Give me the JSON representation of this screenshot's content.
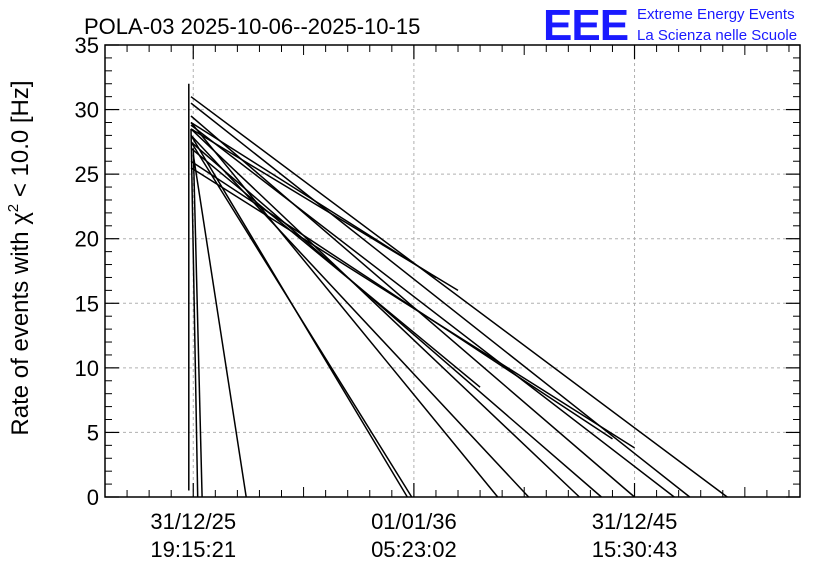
{
  "title": "POLA-03 2025-10-06--2025-10-15",
  "logo": {
    "mark": "EEE",
    "line1": "Extreme Energy Events",
    "line2": "La Scienza nelle Scuole",
    "color": "#1a1aff"
  },
  "y_axis_label": {
    "prefix": "Rate of events with ",
    "chi": "χ",
    "sup": "2",
    "suffix": " < 10.0 [Hz]"
  },
  "x_tick_labels": [
    {
      "date": "31/12/25",
      "time": "19:15:21"
    },
    {
      "date": "01/01/36",
      "time": "05:23:02"
    },
    {
      "date": "31/12/45",
      "time": "15:30:43"
    }
  ],
  "chart_data": {
    "type": "line",
    "title": "POLA-03 2025-10-06--2025-10-15",
    "xlabel": "",
    "ylabel": "Rate of events with χ2 < 10.0 [Hz]",
    "ylim": [
      0,
      35
    ],
    "xlim": [
      -0.4,
      2.75
    ],
    "x_unit_note": "x in decades after 31/12/25 19:15:21",
    "yticks": [
      0,
      5,
      10,
      15,
      20,
      25,
      30,
      35
    ],
    "grid": true,
    "x_major_ticks": [
      0,
      1,
      2
    ],
    "series": [
      {
        "values": [
          [
            -0.02,
            0.5
          ],
          [
            -0.02,
            32.0
          ]
        ]
      },
      {
        "values": [
          [
            -0.01,
            28.5
          ],
          [
            0.02,
            0.0
          ]
        ]
      },
      {
        "values": [
          [
            0.0,
            27.0
          ],
          [
            0.04,
            0.0
          ]
        ]
      },
      {
        "values": [
          [
            0.0,
            26.5
          ],
          [
            0.24,
            0.0
          ]
        ]
      },
      {
        "values": [
          [
            -0.01,
            28.0
          ],
          [
            0.97,
            0.0
          ]
        ]
      },
      {
        "values": [
          [
            -0.01,
            27.5
          ],
          [
            0.99,
            0.0
          ]
        ]
      },
      {
        "values": [
          [
            -0.01,
            29.0
          ],
          [
            1.38,
            0.0
          ]
        ]
      },
      {
        "values": [
          [
            -0.01,
            28.0
          ],
          [
            1.52,
            0.0
          ]
        ]
      },
      {
        "values": [
          [
            -0.01,
            28.5
          ],
          [
            1.75,
            0.0
          ]
        ]
      },
      {
        "values": [
          [
            -0.01,
            27.5
          ],
          [
            1.85,
            0.0
          ]
        ]
      },
      {
        "values": [
          [
            -0.01,
            29.5
          ],
          [
            2.0,
            0.0
          ]
        ]
      },
      {
        "values": [
          [
            -0.01,
            28.8
          ],
          [
            2.18,
            0.0
          ]
        ]
      },
      {
        "values": [
          [
            -0.01,
            30.5
          ],
          [
            2.25,
            0.0
          ]
        ]
      },
      {
        "values": [
          [
            -0.01,
            31.0
          ],
          [
            2.42,
            0.0
          ]
        ]
      },
      {
        "values": [
          [
            -0.01,
            25.5
          ],
          [
            2.0,
            3.8
          ]
        ]
      },
      {
        "values": [
          [
            -0.01,
            26.0
          ],
          [
            1.9,
            4.5
          ]
        ]
      },
      {
        "values": [
          [
            -0.01,
            27.0
          ],
          [
            1.3,
            8.5
          ]
        ]
      },
      {
        "values": [
          [
            -0.01,
            29.0
          ],
          [
            1.1,
            17.0
          ]
        ]
      },
      {
        "values": [
          [
            -0.01,
            28.5
          ],
          [
            1.2,
            16.0
          ]
        ]
      }
    ]
  }
}
